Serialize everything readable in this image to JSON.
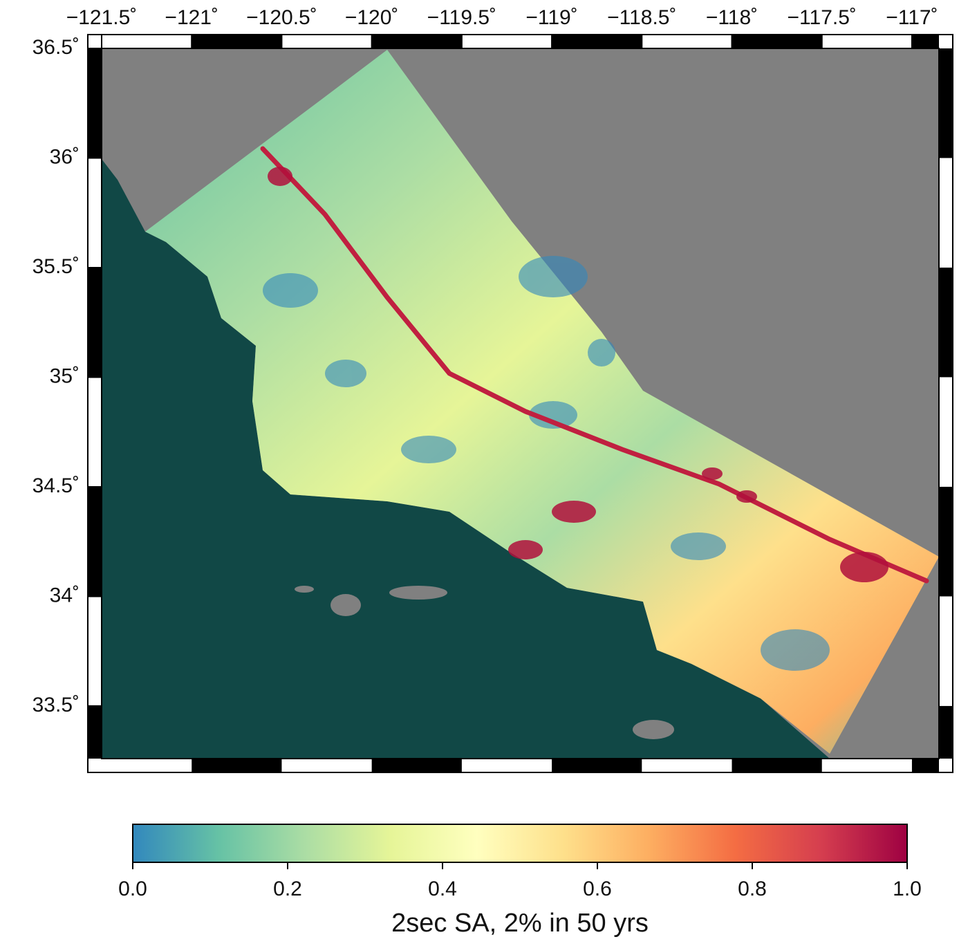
{
  "map": {
    "xlim": [
      -121.5,
      -116.85
    ],
    "ylim": [
      33.26,
      36.5
    ],
    "xticks": [
      {
        "value": -121.5,
        "label": "−121.5˚"
      },
      {
        "value": -121,
        "label": "−121˚"
      },
      {
        "value": -120.5,
        "label": "−120.5˚"
      },
      {
        "value": -120,
        "label": "−120˚"
      },
      {
        "value": -119.5,
        "label": "−119.5˚"
      },
      {
        "value": -119,
        "label": "−119˚"
      },
      {
        "value": -118.5,
        "label": "−118.5˚"
      },
      {
        "value": -118,
        "label": "−118˚"
      },
      {
        "value": -117.5,
        "label": "−117.5˚"
      },
      {
        "value": -117,
        "label": "−117˚"
      }
    ],
    "yticks": [
      {
        "value": 33.5,
        "label": "33.5˚"
      },
      {
        "value": 34,
        "label": "34˚"
      },
      {
        "value": 34.5,
        "label": "34.5˚"
      },
      {
        "value": 35,
        "label": "35˚"
      },
      {
        "value": 35.5,
        "label": "35.5˚"
      },
      {
        "value": 36,
        "label": "36˚"
      },
      {
        "value": 36.5,
        "label": "36.5˚"
      }
    ]
  },
  "colorbar": {
    "label": "2sec SA, 2% in 50 yrs",
    "lim": [
      0,
      1
    ],
    "ticks": [
      {
        "value": 0,
        "label": "0.0"
      },
      0.2,
      0.4,
      0.6,
      0.8,
      {
        "value": 1,
        "label": "1.0"
      }
    ],
    "colors": [
      "#3288bd",
      "#66c2a5",
      "#abdda4",
      "#e6f598",
      "#ffffbf",
      "#fee08b",
      "#fdae61",
      "#f46d43",
      "#d53e4f",
      "#9e0142"
    ]
  }
}
